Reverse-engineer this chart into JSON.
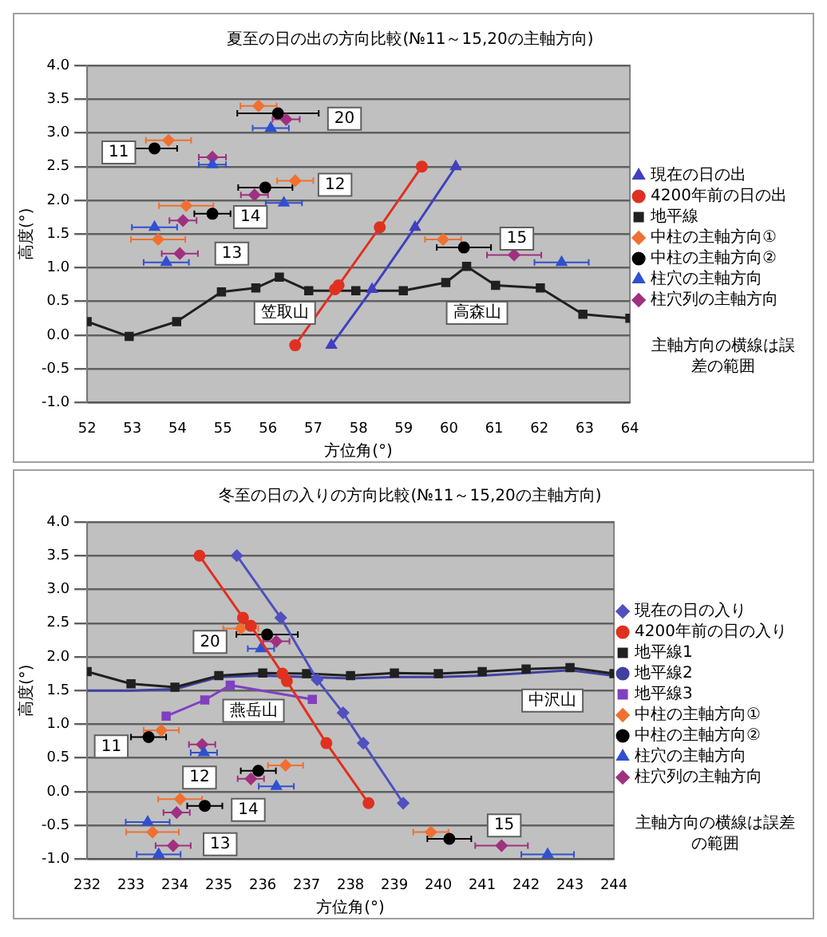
{
  "chart_data": [
    {
      "type": "scatter",
      "title": "夏至の日の出の方向比較(№11～15,20の主軸方向)",
      "xlabel": "方位角(°)",
      "ylabel": "高度(°)",
      "xlim": [
        52,
        64
      ],
      "xticks": [
        52,
        53,
        54,
        55,
        56,
        57,
        58,
        59,
        60,
        61,
        62,
        63,
        64
      ],
      "ylim": [
        -1,
        4
      ],
      "yticks": [
        {
          "value": -1,
          "label": "-1.0"
        },
        {
          "value": -0.5,
          "label": "-0.5"
        },
        {
          "value": 0,
          "label": "0.0"
        },
        {
          "value": 0.5,
          "label": "0.5"
        },
        {
          "value": 1,
          "label": "1.0"
        },
        {
          "value": 1.5,
          "label": "1.5"
        },
        {
          "value": 2,
          "label": "2.0"
        },
        {
          "value": 2.5,
          "label": "2.5"
        },
        {
          "value": 3,
          "label": "3.0"
        },
        {
          "value": 3.5,
          "label": "3.5"
        },
        {
          "value": 4,
          "label": "4.0"
        }
      ],
      "grid": "y",
      "legend": "right",
      "series": [
        {
          "name": "現在の日の出",
          "type": "line",
          "marker": "triangle",
          "color": "#4040c0",
          "x": [
            57.4,
            58.3,
            59.25,
            60.15
          ],
          "values": [
            -0.15,
            0.68,
            1.6,
            2.5
          ]
        },
        {
          "name": "4200年前の日の出",
          "type": "line",
          "marker": "circle",
          "color": "#e03020",
          "x": [
            56.6,
            57.48,
            57.56,
            58.47,
            59.4
          ],
          "values": [
            -0.15,
            0.68,
            0.74,
            1.6,
            2.5
          ]
        },
        {
          "name": "地平線",
          "type": "line",
          "marker": "square",
          "color": "#202020",
          "x": [
            52,
            52.93,
            53.98,
            54.97,
            55.73,
            56.25,
            56.9,
            57.94,
            58.99,
            59.93,
            60.39,
            61.03,
            62.02,
            62.96,
            64
          ],
          "values": [
            0.2,
            -0.02,
            0.2,
            0.64,
            0.7,
            0.86,
            0.66,
            0.66,
            0.66,
            0.78,
            1.02,
            0.74,
            0.7,
            0.31,
            0.25
          ]
        },
        {
          "name": "中柱の主軸方向①",
          "type": "scatter",
          "marker": "diamond",
          "color": "#f07030",
          "x": [
            55.79,
            53.8,
            56.6,
            54.19,
            53.57,
            59.87
          ],
          "values": [
            3.4,
            2.89,
            2.29,
            1.92,
            1.42,
            1.42
          ],
          "xerrors": [
            0.4,
            0.5,
            0.4,
            0.6,
            0.6,
            0.4
          ]
        },
        {
          "name": "中柱の主軸方向②",
          "type": "scatter",
          "marker": "circle",
          "color": "#000000",
          "x": [
            56.22,
            53.49,
            55.94,
            54.77,
            60.33
          ],
          "values": [
            3.29,
            2.77,
            2.19,
            1.8,
            1.3
          ],
          "xerrors": [
            0.9,
            0.5,
            0.6,
            0.4,
            0.6
          ]
        },
        {
          "name": "柱穴の主軸方向",
          "type": "scatter",
          "marker": "triangle",
          "color": "#3050d0",
          "x": [
            56.06,
            54.77,
            56.35,
            53.49,
            53.75,
            62.49
          ],
          "values": [
            3.07,
            2.53,
            1.96,
            1.6,
            1.08,
            1.08
          ],
          "xerrors": [
            0.4,
            0.3,
            0.4,
            0.5,
            0.5,
            0.6
          ]
        },
        {
          "name": "柱穴列の主軸方向",
          "type": "scatter",
          "marker": "diamond",
          "color": "#a03080",
          "x": [
            56.4,
            54.77,
            55.7,
            54.12,
            54.05,
            61.44
          ],
          "values": [
            3.2,
            2.64,
            2.08,
            1.7,
            1.21,
            1.19
          ],
          "xerrors": [
            0.3,
            0.3,
            0.3,
            0.3,
            0.4,
            0.6
          ]
        }
      ],
      "annotations": [
        {
          "text": "20",
          "x": 57.69,
          "y": 3.21
        },
        {
          "text": "11",
          "x": 52.7,
          "y": 2.71
        },
        {
          "text": "12",
          "x": 57.48,
          "y": 2.23
        },
        {
          "text": "14",
          "x": 55.61,
          "y": 1.75
        },
        {
          "text": "13",
          "x": 55.2,
          "y": 1.21
        },
        {
          "text": "15",
          "x": 61.5,
          "y": 1.43
        },
        {
          "text": "笠取山",
          "x": 56.37,
          "y": 0.33
        },
        {
          "text": "高森山",
          "x": 60.62,
          "y": 0.33
        },
        "主軸方向の横線は誤差の範囲"
      ]
    },
    {
      "type": "scatter",
      "title": "冬至の日の入りの方向比較(№11～15,20の主軸方向)",
      "xlabel": "方位角(°)",
      "ylabel": "高度(°)",
      "xlim": [
        232,
        244
      ],
      "xticks": [
        232,
        233,
        234,
        235,
        236,
        237,
        238,
        239,
        240,
        241,
        242,
        243,
        244
      ],
      "ylim": [
        -1,
        4
      ],
      "yticks": [
        {
          "value": -1,
          "label": "-1.0"
        },
        {
          "value": -0.5,
          "label": "-0.5"
        },
        {
          "value": 0,
          "label": "0.0"
        },
        {
          "value": 0.5,
          "label": "0.5"
        },
        {
          "value": 1,
          "label": "1.0"
        },
        {
          "value": 1.5,
          "label": "1.5"
        },
        {
          "value": 2,
          "label": "2.0"
        },
        {
          "value": 2.5,
          "label": "2.5"
        },
        {
          "value": 3,
          "label": "3.0"
        },
        {
          "value": 3.5,
          "label": "3.5"
        },
        {
          "value": 4,
          "label": "4.0"
        }
      ],
      "grid": "y",
      "legend": "right",
      "series": [
        {
          "name": "現在の日の入り",
          "type": "line",
          "marker": "diamond",
          "color": "#5050c0",
          "x": [
            235.41,
            236.41,
            237.24,
            237.83,
            238.29,
            239.2
          ],
          "values": [
            3.5,
            2.58,
            1.66,
            1.17,
            0.72,
            -0.17
          ]
        },
        {
          "name": "4200年前の日の入り",
          "type": "line",
          "marker": "circle",
          "color": "#e03020",
          "x": [
            234.56,
            235.55,
            235.73,
            236.45,
            236.55,
            237.45,
            238.41
          ],
          "values": [
            3.5,
            2.58,
            2.46,
            1.75,
            1.64,
            0.72,
            -0.17
          ]
        },
        {
          "name": "地平線1",
          "type": "line",
          "marker": "square",
          "color": "#202020",
          "x": [
            232,
            233,
            234,
            235,
            236,
            237,
            238,
            239,
            240,
            241,
            242,
            243,
            244
          ],
          "values": [
            1.78,
            1.6,
            1.55,
            1.72,
            1.76,
            1.75,
            1.72,
            1.76,
            1.75,
            1.78,
            1.82,
            1.84,
            1.75
          ]
        },
        {
          "name": "地平線2",
          "type": "line",
          "marker": "none",
          "color": "#4040a0",
          "x": [
            232,
            233,
            234,
            235,
            236,
            237,
            238,
            239,
            240,
            241,
            242,
            243,
            244
          ],
          "values": [
            1.5,
            1.5,
            1.52,
            1.7,
            1.72,
            1.7,
            1.68,
            1.7,
            1.7,
            1.72,
            1.76,
            1.8,
            1.72
          ]
        },
        {
          "name": "地平線3",
          "type": "line",
          "marker": "square",
          "color": "#8040c0",
          "x": [
            233.8,
            234.68,
            235.26,
            236.08,
            236.49,
            237.13
          ],
          "values": [
            1.12,
            1.36,
            1.58,
            null,
            null,
            1.37
          ]
        },
        {
          "name": "中柱の主軸方向①",
          "type": "scatter",
          "marker": "diamond",
          "color": "#f07030",
          "x": [
            235.5,
            233.69,
            236.52,
            234.12,
            233.49,
            239.83
          ],
          "values": [
            2.42,
            0.91,
            0.39,
            -0.11,
            -0.6,
            -0.6
          ],
          "xerrors": [
            0.4,
            0.4,
            0.4,
            0.5,
            0.6,
            0.4
          ]
        },
        {
          "name": "中柱の主軸方向②",
          "type": "scatter",
          "marker": "circle",
          "color": "#000000",
          "x": [
            236.1,
            233.4,
            235.9,
            234.68,
            240.25
          ],
          "values": [
            2.33,
            0.81,
            0.31,
            -0.21,
            -0.7
          ],
          "xerrors": [
            0.7,
            0.4,
            0.4,
            0.4,
            0.5
          ]
        },
        {
          "name": "柱穴の主軸方向",
          "type": "scatter",
          "marker": "triangle",
          "color": "#3050d0",
          "x": [
            235.96,
            234.66,
            236.31,
            233.38,
            233.63,
            242.49
          ],
          "values": [
            2.12,
            0.58,
            0.08,
            -0.45,
            -0.93,
            -0.93
          ],
          "xerrors": [
            0.3,
            0.3,
            0.4,
            0.5,
            0.5,
            0.6
          ]
        },
        {
          "name": "柱穴列の主軸方向",
          "type": "scatter",
          "marker": "diamond",
          "color": "#a03080",
          "x": [
            236.31,
            234.62,
            235.73,
            234.04,
            233.96,
            241.44
          ],
          "values": [
            2.23,
            0.7,
            0.19,
            -0.31,
            -0.8,
            -0.8
          ],
          "xerrors": [
            0.3,
            0.3,
            0.3,
            0.3,
            0.4,
            0.6
          ]
        }
      ],
      "annotations": [
        {
          "text": "20",
          "x": 234.8,
          "y": 2.22
        },
        {
          "text": "11",
          "x": 232.55,
          "y": 0.67
        },
        {
          "text": "12",
          "x": 234.56,
          "y": 0.21
        },
        {
          "text": "14",
          "x": 235.67,
          "y": -0.27
        },
        {
          "text": "13",
          "x": 235.03,
          "y": -0.78
        },
        {
          "text": "15",
          "x": 241.5,
          "y": -0.5
        },
        {
          "text": "燕岳山",
          "x": 235.79,
          "y": 1.2
        },
        {
          "text": "中沢山",
          "x": 242.6,
          "y": 1.35
        },
        "主軸方向の横線は誤差の範囲"
      ]
    }
  ]
}
